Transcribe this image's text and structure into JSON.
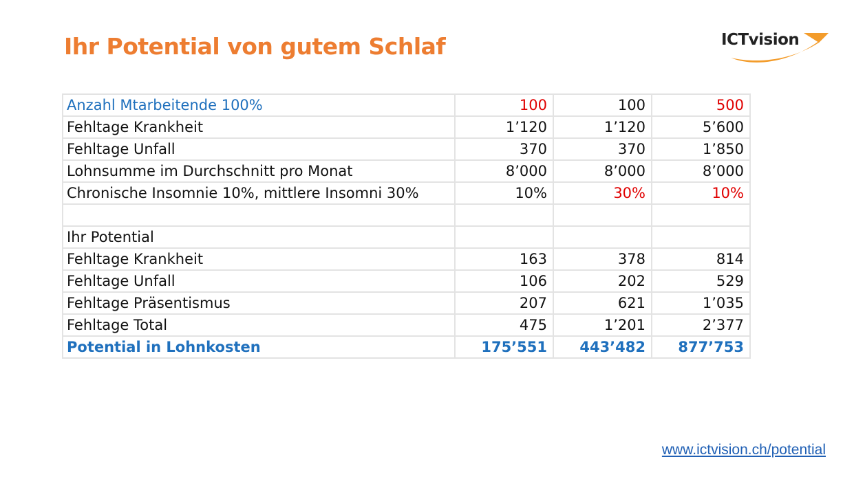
{
  "title": "Ihr Potential von gutem Schlaf",
  "logo": {
    "text": "ICTvision",
    "swoosh_color": "#f39c2b"
  },
  "colors": {
    "title": "#ed7d31",
    "highlight_red": "#e00000",
    "accent_blue": "#1f70bd"
  },
  "table": {
    "rows": [
      {
        "label": "Anzahl Mtarbeitende 100%",
        "values": [
          "100",
          "100",
          "500"
        ],
        "style": "blue-label",
        "red": [
          true,
          false,
          true
        ]
      },
      {
        "label": "Fehltage Krankheit",
        "values": [
          "1’120",
          "1’120",
          "5’600"
        ],
        "red": [
          false,
          false,
          false
        ]
      },
      {
        "label": "Fehltage Unfall",
        "values": [
          "370",
          "370",
          "1’850"
        ],
        "red": [
          false,
          false,
          false
        ]
      },
      {
        "label": "Lohnsumme im Durchschnitt pro Monat",
        "values": [
          "8’000",
          "8’000",
          "8’000"
        ],
        "red": [
          false,
          false,
          false
        ]
      },
      {
        "label": "Chronische Insomnie 10%, mittlere Insomni 30%",
        "values": [
          "10%",
          "30%",
          "10%"
        ],
        "red": [
          false,
          true,
          true
        ]
      },
      {
        "label": "",
        "values": [
          "",
          "",
          ""
        ],
        "red": [
          false,
          false,
          false
        ]
      },
      {
        "label": "Ihr Potential",
        "values": [
          "",
          "",
          ""
        ],
        "red": [
          false,
          false,
          false
        ]
      },
      {
        "label": "Fehltage Krankheit",
        "values": [
          "163",
          "378",
          "814"
        ],
        "red": [
          false,
          false,
          false
        ]
      },
      {
        "label": "Fehltage Unfall",
        "values": [
          "106",
          "202",
          "529"
        ],
        "red": [
          false,
          false,
          false
        ]
      },
      {
        "label": "Fehltage Präsentismus",
        "values": [
          "207",
          "621",
          "1’035"
        ],
        "red": [
          false,
          false,
          false
        ]
      },
      {
        "label": "Fehltage Total",
        "values": [
          "475",
          "1’201",
          "2’377"
        ],
        "red": [
          false,
          false,
          false
        ]
      },
      {
        "label": "Potential in Lohnkosten",
        "values": [
          "175’551",
          "443’482",
          "877’753"
        ],
        "style": "bold-blue",
        "red": [
          false,
          false,
          false
        ]
      }
    ]
  },
  "footer": {
    "link": "www.ictvision.ch/potential"
  }
}
